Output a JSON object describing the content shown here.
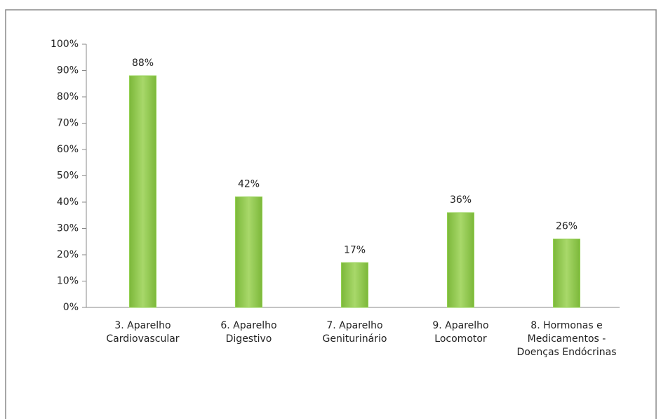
{
  "chart_data": {
    "type": "bar",
    "categories": [
      "3. Aparelho Cardiovascular",
      "6. Aparelho Digestivo",
      "7. Aparelho Geniturinário",
      "9. Aparelho Locomotor",
      "8. Hormonas e Medicamentos - Doenças Endócrinas"
    ],
    "values": [
      88,
      42,
      17,
      36,
      26
    ],
    "value_labels": [
      "88%",
      "42%",
      "17%",
      "36%",
      "26%"
    ],
    "color": "#92d050",
    "ylim": [
      0,
      100
    ],
    "yticks": [
      {
        "value": 0,
        "label": "0%"
      },
      {
        "value": 10,
        "label": "10%"
      },
      {
        "value": 20,
        "label": "20%"
      },
      {
        "value": 30,
        "label": "30%"
      },
      {
        "value": 40,
        "label": "40%"
      },
      {
        "value": 50,
        "label": "50%"
      },
      {
        "value": 60,
        "label": "60%"
      },
      {
        "value": 70,
        "label": "70%"
      },
      {
        "value": 80,
        "label": "80%"
      },
      {
        "value": 90,
        "label": "90%"
      },
      {
        "value": 100,
        "label": "100%"
      }
    ],
    "grid": false
  }
}
